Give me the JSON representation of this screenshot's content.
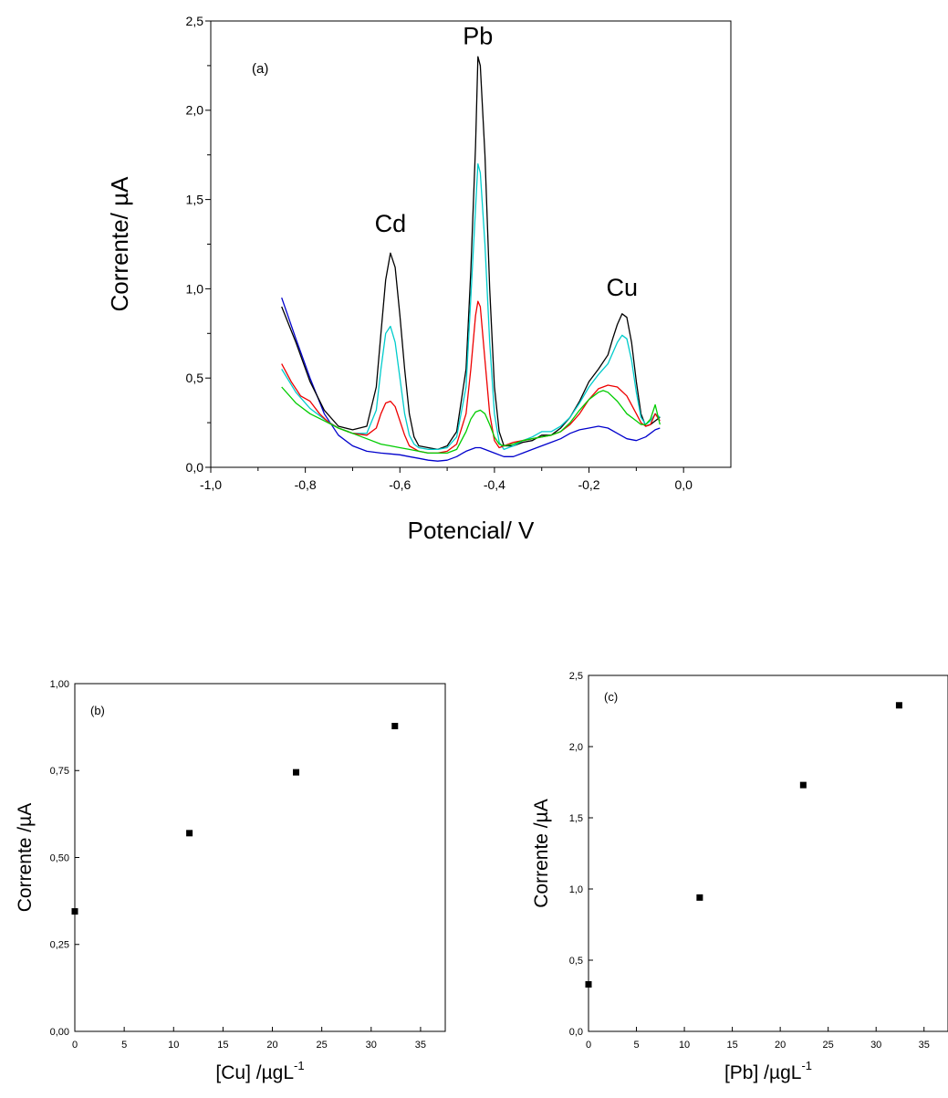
{
  "chart_data": [
    {
      "id": "a",
      "type": "line",
      "panel_label": "(a)",
      "xlabel": "Potencial/ V",
      "ylabel": "Corrente/ µA",
      "xlim": [
        -1.0,
        0.1
      ],
      "ylim": [
        0.0,
        2.5
      ],
      "xticks": [
        -1.0,
        -0.8,
        -0.6,
        -0.4,
        -0.2,
        0.0
      ],
      "xtick_labels": [
        "-1,0",
        "-0,8",
        "-0,6",
        "-0,4",
        "-0,2",
        "0,0"
      ],
      "yticks": [
        0.0,
        0.5,
        1.0,
        1.5,
        2.0,
        2.5
      ],
      "ytick_labels": [
        "0,0",
        "0,5",
        "1,0",
        "1,5",
        "2,0",
        "2,5"
      ],
      "grid": false,
      "annotations": [
        {
          "text": "Cd",
          "x": -0.62,
          "y": 1.32
        },
        {
          "text": "Pb",
          "x": -0.435,
          "y": 2.37
        },
        {
          "text": "Cu",
          "x": -0.13,
          "y": 0.96
        }
      ],
      "series": [
        {
          "color": "#0000cc",
          "x": [
            -0.85,
            -0.82,
            -0.79,
            -0.76,
            -0.73,
            -0.7,
            -0.67,
            -0.64,
            -0.62,
            -0.6,
            -0.58,
            -0.56,
            -0.54,
            -0.52,
            -0.5,
            -0.48,
            -0.46,
            -0.44,
            -0.43,
            -0.42,
            -0.4,
            -0.38,
            -0.36,
            -0.34,
            -0.32,
            -0.3,
            -0.28,
            -0.26,
            -0.24,
            -0.22,
            -0.2,
            -0.18,
            -0.16,
            -0.14,
            -0.12,
            -0.1,
            -0.08,
            -0.06,
            -0.05
          ],
          "y": [
            0.95,
            0.72,
            0.5,
            0.3,
            0.18,
            0.12,
            0.09,
            0.08,
            0.075,
            0.07,
            0.06,
            0.05,
            0.04,
            0.035,
            0.04,
            0.06,
            0.09,
            0.11,
            0.11,
            0.1,
            0.08,
            0.06,
            0.06,
            0.08,
            0.1,
            0.12,
            0.14,
            0.16,
            0.19,
            0.21,
            0.22,
            0.23,
            0.22,
            0.19,
            0.16,
            0.15,
            0.17,
            0.21,
            0.22
          ]
        },
        {
          "color": "#000000",
          "x": [
            -0.85,
            -0.82,
            -0.79,
            -0.76,
            -0.73,
            -0.7,
            -0.67,
            -0.65,
            -0.64,
            -0.63,
            -0.62,
            -0.61,
            -0.6,
            -0.59,
            -0.58,
            -0.57,
            -0.56,
            -0.54,
            -0.52,
            -0.5,
            -0.48,
            -0.46,
            -0.45,
            -0.44,
            -0.435,
            -0.43,
            -0.42,
            -0.41,
            -0.4,
            -0.39,
            -0.38,
            -0.36,
            -0.34,
            -0.32,
            -0.3,
            -0.28,
            -0.26,
            -0.24,
            -0.22,
            -0.2,
            -0.18,
            -0.16,
            -0.15,
            -0.14,
            -0.13,
            -0.12,
            -0.11,
            -0.1,
            -0.09,
            -0.08,
            -0.07,
            -0.06,
            -0.05
          ],
          "y": [
            0.9,
            0.7,
            0.48,
            0.32,
            0.23,
            0.21,
            0.23,
            0.45,
            0.75,
            1.05,
            1.2,
            1.12,
            0.85,
            0.55,
            0.3,
            0.17,
            0.12,
            0.11,
            0.1,
            0.12,
            0.2,
            0.55,
            1.1,
            1.8,
            2.3,
            2.25,
            1.75,
            1.0,
            0.45,
            0.2,
            0.12,
            0.12,
            0.14,
            0.15,
            0.18,
            0.18,
            0.22,
            0.28,
            0.37,
            0.48,
            0.55,
            0.63,
            0.72,
            0.8,
            0.86,
            0.84,
            0.7,
            0.48,
            0.3,
            0.23,
            0.24,
            0.26,
            0.28
          ]
        },
        {
          "color": "#00cccc",
          "x": [
            -0.85,
            -0.82,
            -0.79,
            -0.76,
            -0.73,
            -0.7,
            -0.67,
            -0.65,
            -0.64,
            -0.63,
            -0.62,
            -0.61,
            -0.6,
            -0.59,
            -0.58,
            -0.57,
            -0.56,
            -0.54,
            -0.52,
            -0.5,
            -0.48,
            -0.46,
            -0.45,
            -0.44,
            -0.435,
            -0.43,
            -0.42,
            -0.41,
            -0.4,
            -0.39,
            -0.38,
            -0.36,
            -0.34,
            -0.32,
            -0.3,
            -0.28,
            -0.26,
            -0.24,
            -0.22,
            -0.2,
            -0.18,
            -0.16,
            -0.15,
            -0.14,
            -0.13,
            -0.12,
            -0.11,
            -0.1,
            -0.09,
            -0.08,
            -0.07,
            -0.06,
            -0.05
          ],
          "y": [
            0.55,
            0.42,
            0.33,
            0.27,
            0.22,
            0.19,
            0.19,
            0.32,
            0.55,
            0.75,
            0.79,
            0.7,
            0.5,
            0.3,
            0.18,
            0.13,
            0.11,
            0.1,
            0.1,
            0.11,
            0.17,
            0.45,
            0.95,
            1.45,
            1.7,
            1.65,
            1.25,
            0.7,
            0.3,
            0.14,
            0.1,
            0.12,
            0.15,
            0.17,
            0.2,
            0.2,
            0.23,
            0.28,
            0.36,
            0.45,
            0.52,
            0.58,
            0.64,
            0.7,
            0.74,
            0.72,
            0.6,
            0.42,
            0.28,
            0.24,
            0.26,
            0.3,
            0.28
          ]
        },
        {
          "color": "#ee0000",
          "x": [
            -0.85,
            -0.83,
            -0.81,
            -0.79,
            -0.77,
            -0.75,
            -0.73,
            -0.7,
            -0.67,
            -0.65,
            -0.64,
            -0.63,
            -0.62,
            -0.61,
            -0.6,
            -0.59,
            -0.58,
            -0.56,
            -0.54,
            -0.52,
            -0.5,
            -0.48,
            -0.46,
            -0.45,
            -0.44,
            -0.435,
            -0.43,
            -0.42,
            -0.41,
            -0.4,
            -0.39,
            -0.38,
            -0.36,
            -0.34,
            -0.32,
            -0.3,
            -0.28,
            -0.26,
            -0.24,
            -0.22,
            -0.2,
            -0.18,
            -0.16,
            -0.14,
            -0.12,
            -0.1,
            -0.09,
            -0.08,
            -0.07,
            -0.06,
            -0.05
          ],
          "y": [
            0.58,
            0.48,
            0.4,
            0.37,
            0.3,
            0.25,
            0.22,
            0.19,
            0.18,
            0.22,
            0.3,
            0.36,
            0.37,
            0.34,
            0.26,
            0.18,
            0.12,
            0.09,
            0.08,
            0.08,
            0.09,
            0.13,
            0.3,
            0.55,
            0.85,
            0.93,
            0.9,
            0.6,
            0.3,
            0.15,
            0.11,
            0.12,
            0.14,
            0.15,
            0.16,
            0.17,
            0.18,
            0.2,
            0.24,
            0.3,
            0.38,
            0.44,
            0.46,
            0.45,
            0.4,
            0.3,
            0.25,
            0.23,
            0.24,
            0.3,
            0.26
          ]
        },
        {
          "color": "#00cc00",
          "x": [
            -0.85,
            -0.82,
            -0.79,
            -0.76,
            -0.73,
            -0.7,
            -0.67,
            -0.64,
            -0.62,
            -0.6,
            -0.58,
            -0.56,
            -0.54,
            -0.52,
            -0.5,
            -0.48,
            -0.46,
            -0.45,
            -0.44,
            -0.43,
            -0.42,
            -0.41,
            -0.4,
            -0.39,
            -0.38,
            -0.36,
            -0.34,
            -0.32,
            -0.3,
            -0.28,
            -0.26,
            -0.24,
            -0.22,
            -0.2,
            -0.18,
            -0.17,
            -0.16,
            -0.14,
            -0.12,
            -0.1,
            -0.09,
            -0.08,
            -0.07,
            -0.06,
            -0.05
          ],
          "y": [
            0.45,
            0.36,
            0.3,
            0.26,
            0.22,
            0.19,
            0.16,
            0.13,
            0.12,
            0.11,
            0.1,
            0.09,
            0.08,
            0.08,
            0.08,
            0.1,
            0.2,
            0.27,
            0.31,
            0.32,
            0.3,
            0.24,
            0.17,
            0.13,
            0.12,
            0.13,
            0.15,
            0.16,
            0.17,
            0.18,
            0.2,
            0.25,
            0.32,
            0.38,
            0.42,
            0.43,
            0.42,
            0.37,
            0.3,
            0.26,
            0.24,
            0.24,
            0.27,
            0.35,
            0.24
          ]
        }
      ]
    },
    {
      "id": "b",
      "type": "scatter",
      "panel_label": "(b)",
      "xlabel": "[Cu] /µgL",
      "xlabel_sup": "-1",
      "ylabel": "Corrente /µA",
      "xlim": [
        0,
        37.5
      ],
      "ylim": [
        0.0,
        1.0
      ],
      "xticks": [
        0,
        5,
        10,
        15,
        20,
        25,
        30,
        35
      ],
      "xtick_labels": [
        "0",
        "5",
        "10",
        "15",
        "20",
        "25",
        "30",
        "35"
      ],
      "yticks": [
        0.0,
        0.25,
        0.5,
        0.75,
        1.0
      ],
      "ytick_labels": [
        "0,00",
        "0,25",
        "0,50",
        "0,75",
        "1,00"
      ],
      "grid": false,
      "x": [
        0,
        11.6,
        22.4,
        32.4
      ],
      "y": [
        0.345,
        0.57,
        0.745,
        0.878
      ]
    },
    {
      "id": "c",
      "type": "scatter",
      "panel_label": "(c)",
      "xlabel": "[Pb] /µgL",
      "xlabel_sup": "-1",
      "ylabel": "Corrente /µA",
      "xlim": [
        0,
        37.5
      ],
      "ylim": [
        0.0,
        2.5
      ],
      "xticks": [
        0,
        5,
        10,
        15,
        20,
        25,
        30,
        35
      ],
      "xtick_labels": [
        "0",
        "5",
        "10",
        "15",
        "20",
        "25",
        "30",
        "35"
      ],
      "yticks": [
        0.0,
        0.5,
        1.0,
        1.5,
        2.0,
        2.5
      ],
      "ytick_labels": [
        "0,0",
        "0,5",
        "1,0",
        "1,5",
        "2,0",
        "2,5"
      ],
      "grid": false,
      "x": [
        0,
        11.6,
        22.4,
        32.4
      ],
      "y": [
        0.33,
        0.94,
        1.73,
        2.29
      ]
    }
  ]
}
